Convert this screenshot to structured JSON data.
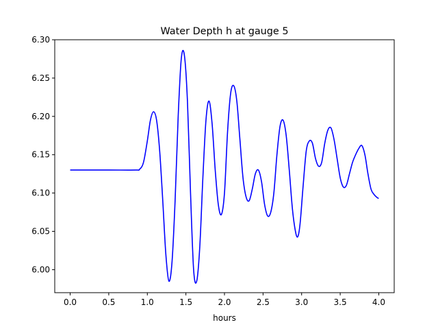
{
  "chart_data": {
    "type": "line",
    "title": "Water Depth h at gauge 5",
    "xlabel": "hours",
    "ylabel": "",
    "xlim": [
      -0.2,
      4.2
    ],
    "ylim": [
      5.97,
      6.3
    ],
    "xticks": [
      0.0,
      0.5,
      1.0,
      1.5,
      2.0,
      2.5,
      3.0,
      3.5,
      4.0
    ],
    "xtick_labels": [
      "0.0",
      "0.5",
      "1.0",
      "1.5",
      "2.0",
      "2.5",
      "3.0",
      "3.5",
      "4.0"
    ],
    "yticks": [
      6.0,
      6.05,
      6.1,
      6.15,
      6.2,
      6.25,
      6.3
    ],
    "ytick_labels": [
      "6.00",
      "6.05",
      "6.10",
      "6.15",
      "6.20",
      "6.25",
      "6.30"
    ],
    "grid": false,
    "legend": "none",
    "series": [
      {
        "color": "#0000ff",
        "x": [
          0.0,
          0.5,
          0.85,
          0.9,
          0.95,
          1.0,
          1.04,
          1.08,
          1.12,
          1.16,
          1.2,
          1.24,
          1.28,
          1.32,
          1.36,
          1.4,
          1.44,
          1.48,
          1.52,
          1.56,
          1.6,
          1.64,
          1.68,
          1.72,
          1.76,
          1.8,
          1.84,
          1.88,
          1.92,
          1.96,
          2.0,
          2.04,
          2.08,
          2.12,
          2.16,
          2.2,
          2.24,
          2.28,
          2.32,
          2.36,
          2.4,
          2.44,
          2.48,
          2.52,
          2.56,
          2.6,
          2.64,
          2.68,
          2.72,
          2.76,
          2.8,
          2.84,
          2.88,
          2.92,
          2.95,
          2.98,
          3.02,
          3.06,
          3.1,
          3.14,
          3.18,
          3.22,
          3.26,
          3.3,
          3.34,
          3.38,
          3.42,
          3.46,
          3.5,
          3.54,
          3.58,
          3.62,
          3.66,
          3.7,
          3.74,
          3.78,
          3.82,
          3.86,
          3.9,
          3.94,
          3.98,
          4.0
        ],
        "y": [
          6.13,
          6.13,
          6.13,
          6.131,
          6.14,
          6.168,
          6.195,
          6.206,
          6.195,
          6.155,
          6.09,
          6.02,
          5.985,
          6.01,
          6.09,
          6.2,
          6.275,
          6.28,
          6.22,
          6.1,
          6.0,
          5.985,
          6.03,
          6.12,
          6.195,
          6.22,
          6.19,
          6.13,
          6.085,
          6.072,
          6.1,
          6.18,
          6.23,
          6.24,
          6.22,
          6.17,
          6.12,
          6.095,
          6.09,
          6.105,
          6.125,
          6.13,
          6.115,
          6.085,
          6.07,
          6.075,
          6.1,
          6.15,
          6.187,
          6.195,
          6.175,
          6.13,
          6.08,
          6.05,
          6.043,
          6.06,
          6.11,
          6.155,
          6.168,
          6.165,
          6.145,
          6.135,
          6.14,
          6.165,
          6.182,
          6.185,
          6.17,
          6.145,
          6.12,
          6.108,
          6.11,
          6.125,
          6.14,
          6.15,
          6.158,
          6.162,
          6.15,
          6.125,
          6.105,
          6.098,
          6.094,
          6.093
        ]
      }
    ]
  }
}
